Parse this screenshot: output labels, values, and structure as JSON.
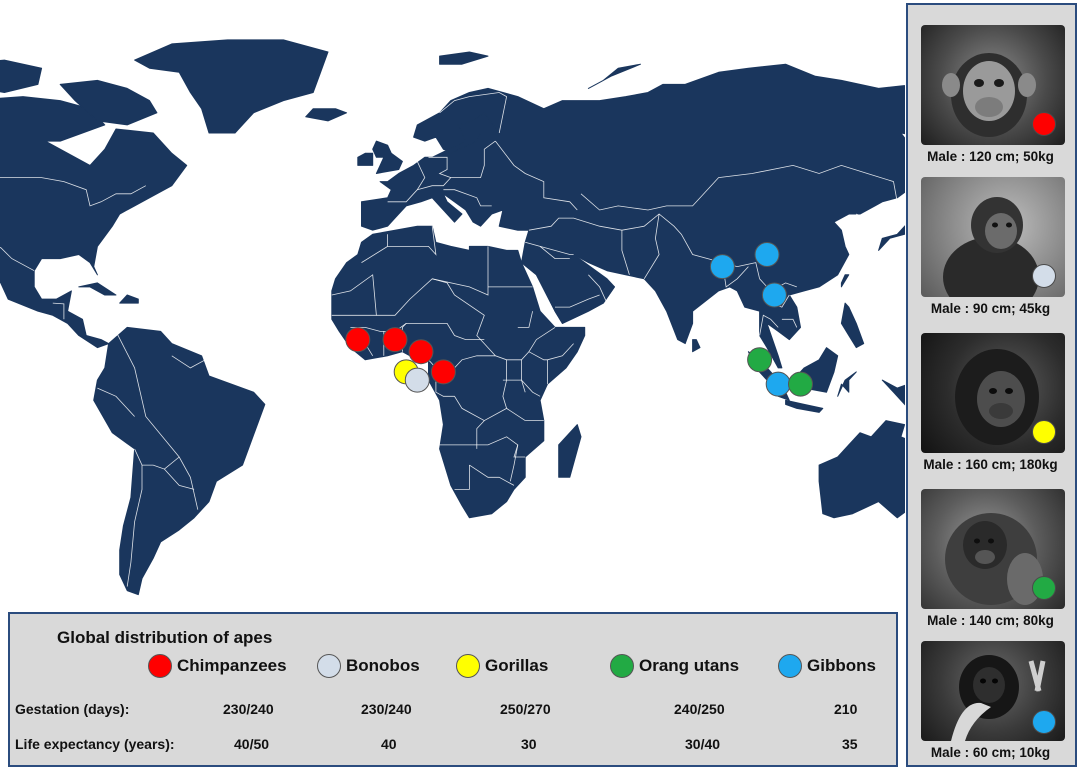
{
  "legend": {
    "title": "Global distribution of apes",
    "species": [
      {
        "name": "Chimpanzees",
        "color": "#ff0000",
        "gestation": "230/240",
        "life_expectancy": "40/50"
      },
      {
        "name": "Bonobos",
        "color": "#d3dde9",
        "gestation": "230/240",
        "life_expectancy": "40"
      },
      {
        "name": "Gorillas",
        "color": "#ffff00",
        "gestation": "250/270",
        "life_expectancy": "30"
      },
      {
        "name": "Orang utans",
        "color": "#22aa44",
        "gestation": "240/250",
        "life_expectancy": "30/40"
      },
      {
        "name": "Gibbons",
        "color": "#1ea8ef",
        "gestation": "210",
        "life_expectancy": "35"
      }
    ],
    "rows": {
      "gestation_label": "Gestation (days):",
      "life_expectancy_label": "Life expectancy (years):"
    }
  },
  "panel": {
    "cards": [
      {
        "species": "Chimpanzees",
        "dot_color": "#ff0000",
        "caption": "Male : 120 cm; 50kg"
      },
      {
        "species": "Bonobos",
        "dot_color": "#d3dde9",
        "caption": "Male : 90 cm; 45kg"
      },
      {
        "species": "Gorillas",
        "dot_color": "#ffff00",
        "caption": "Male : 160 cm; 180kg"
      },
      {
        "species": "Orang utans",
        "dot_color": "#22aa44",
        "caption": "Male : 140 cm; 80kg"
      },
      {
        "species": "Gibbons",
        "dot_color": "#1ea8ef",
        "caption": "Male : 60 cm; 10kg"
      }
    ]
  },
  "map": {
    "land_color": "#1a365d",
    "border_color": "#ffffff",
    "markers": [
      {
        "species": "Chimpanzees",
        "lon": -10,
        "lat": 9
      },
      {
        "species": "Chimpanzees",
        "lon": 0,
        "lat": 9
      },
      {
        "species": "Chimpanzees",
        "lon": 7,
        "lat": 6
      },
      {
        "species": "Chimpanzees",
        "lon": 13,
        "lat": 1
      },
      {
        "species": "Gorillas",
        "lon": 3,
        "lat": 1
      },
      {
        "species": "Bonobos",
        "lon": 6,
        "lat": -1
      },
      {
        "species": "Gibbons",
        "lon": 88,
        "lat": 27
      },
      {
        "species": "Gibbons",
        "lon": 100,
        "lat": 30
      },
      {
        "species": "Gibbons",
        "lon": 102,
        "lat": 20
      },
      {
        "species": "Orang utans",
        "lon": 98,
        "lat": 4
      },
      {
        "species": "Gibbons",
        "lon": 103,
        "lat": -2
      },
      {
        "species": "Orang utans",
        "lon": 109,
        "lat": -2
      }
    ]
  }
}
